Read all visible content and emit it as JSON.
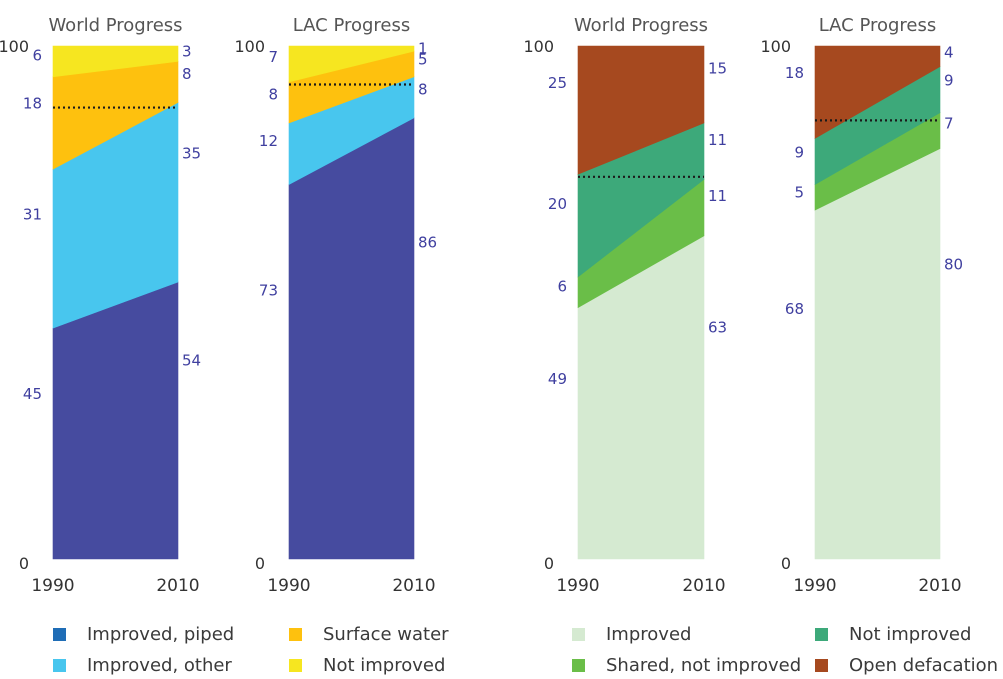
{
  "chart_data": [
    {
      "type": "area",
      "title": "World Progress",
      "x": [
        "1990",
        "2010"
      ],
      "ylim": [
        0,
        100
      ],
      "y_ticks": [
        "0",
        "100"
      ],
      "series": [
        {
          "name": "Improved, piped",
          "color": "#464b9f",
          "values": [
            45,
            54
          ],
          "labels": [
            "45",
            "54"
          ]
        },
        {
          "name": "Improved, other",
          "color": "#48c6ee",
          "values": [
            31,
            35
          ],
          "labels": [
            "31",
            "35"
          ]
        },
        {
          "name": "Surface water",
          "color": "#fec10e",
          "values": [
            18,
            8
          ],
          "labels": [
            "18",
            "8"
          ]
        },
        {
          "name": "Not improved",
          "color": "#f6e620",
          "values": [
            6,
            3
          ],
          "labels": [
            "6",
            "3"
          ]
        }
      ],
      "target_level": 88
    },
    {
      "type": "area",
      "title": "LAC Progress",
      "x": [
        "1990",
        "2010"
      ],
      "ylim": [
        0,
        100
      ],
      "y_ticks": [
        "0",
        "100"
      ],
      "series": [
        {
          "name": "Improved, piped",
          "color": "#464b9f",
          "values": [
            73,
            86
          ],
          "labels": [
            "73",
            "86"
          ]
        },
        {
          "name": "Improved, other",
          "color": "#48c6ee",
          "values": [
            12,
            8
          ],
          "labels": [
            "12",
            "8"
          ]
        },
        {
          "name": "Surface water",
          "color": "#fec10e",
          "values": [
            8,
            5
          ],
          "labels": [
            "8",
            "5"
          ]
        },
        {
          "name": "Not improved",
          "color": "#f6e620",
          "values": [
            7,
            1
          ],
          "labels": [
            "7",
            "1"
          ]
        }
      ],
      "target_level": 92.5
    },
    {
      "type": "area",
      "title": "World Progress",
      "x": [
        "1990",
        "2010"
      ],
      "ylim": [
        0,
        100
      ],
      "y_ticks": [
        "0",
        "100"
      ],
      "series": [
        {
          "name": "Improved",
          "color": "#d5ead1",
          "values": [
            49,
            63
          ],
          "labels": [
            "49",
            "63"
          ]
        },
        {
          "name": "Shared, not improved",
          "color": "#6abe48",
          "values": [
            6,
            11
          ],
          "labels": [
            "6",
            "11"
          ]
        },
        {
          "name": "Not improved",
          "color": "#3da97a",
          "values": [
            20,
            11
          ],
          "labels": [
            "20",
            "11"
          ]
        },
        {
          "name": "Open defacation",
          "color": "#a6491f",
          "values": [
            25,
            15
          ],
          "labels": [
            "25",
            "15"
          ]
        }
      ],
      "target_level": 74.5
    },
    {
      "type": "area",
      "title": "LAC Progress",
      "x": [
        "1990",
        "2010"
      ],
      "ylim": [
        0,
        100
      ],
      "y_ticks": [
        "0",
        "100"
      ],
      "series": [
        {
          "name": "Improved",
          "color": "#d5ead1",
          "values": [
            68,
            80
          ],
          "labels": [
            "68",
            "80"
          ]
        },
        {
          "name": "Shared, not improved",
          "color": "#6abe48",
          "values": [
            5,
            7
          ],
          "labels": [
            "5",
            "7"
          ]
        },
        {
          "name": "Not improved",
          "color": "#3da97a",
          "values": [
            9,
            9
          ],
          "labels": [
            "9",
            "9"
          ]
        },
        {
          "name": "Open defacation",
          "color": "#a6491f",
          "values": [
            18,
            4
          ],
          "labels": [
            "18",
            "4"
          ]
        }
      ],
      "target_level": 85.5
    }
  ],
  "legends": [
    {
      "items": [
        {
          "label": "Improved, piped",
          "color": "#1f6db6"
        },
        {
          "label": "Surface water",
          "color": "#fec10e"
        },
        {
          "label": "Improved, other",
          "color": "#48c6ee"
        },
        {
          "label": "Not improved",
          "color": "#f6e620"
        }
      ]
    },
    {
      "items": [
        {
          "label": "Improved",
          "color": "#d5ead1"
        },
        {
          "label": "Not improved",
          "color": "#3da97a"
        },
        {
          "label": "Shared, not improved",
          "color": "#6abe48"
        },
        {
          "label": "Open defacation",
          "color": "#a6491f"
        }
      ]
    }
  ],
  "colors": {
    "value_label": "#3f3f9f",
    "axis_text": "#333333",
    "title_text": "#555555",
    "target_line": "#1a1a1a"
  }
}
